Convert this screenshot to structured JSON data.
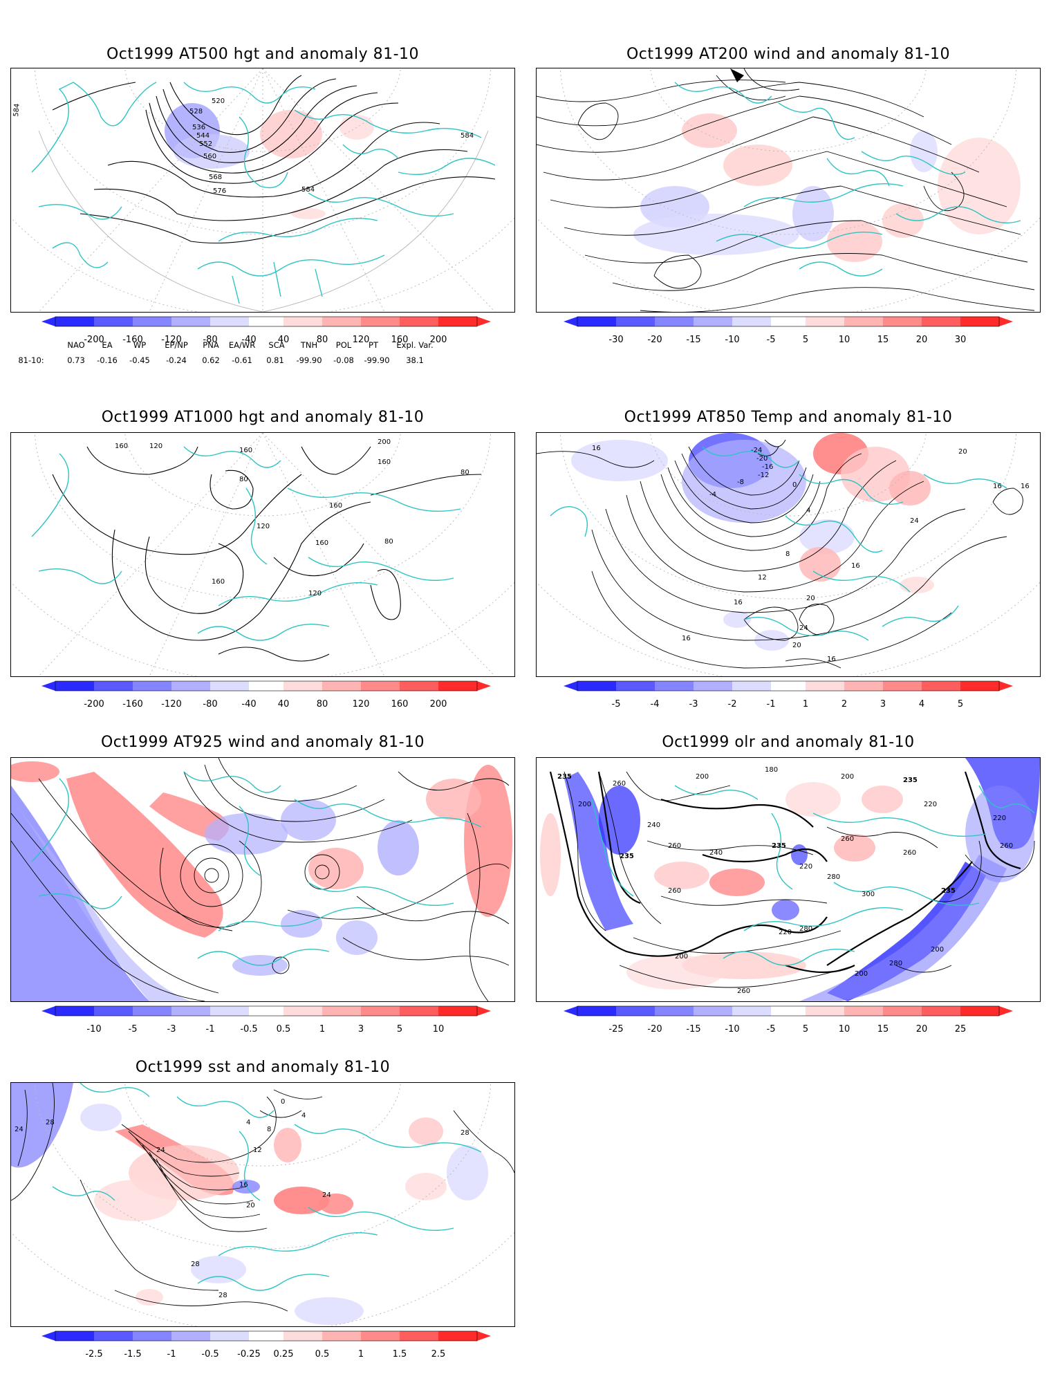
{
  "panels": [
    {
      "id": "p1",
      "title": "Oct1999 AT500 hgt and anomaly 81-10",
      "colorbar": [
        "-200",
        "-160",
        "-120",
        "-80",
        "-40",
        "40",
        "80",
        "120",
        "160",
        "200"
      ],
      "contour_labels": [
        "520",
        "528",
        "536",
        "544",
        "552",
        "560",
        "568",
        "576",
        "584",
        "584",
        "584"
      ]
    },
    {
      "id": "p2",
      "title": "Oct1999 AT200 wind and anomaly 81-10",
      "colorbar": [
        "-30",
        "-20",
        "-15",
        "-10",
        "-5",
        "5",
        "10",
        "15",
        "20",
        "30"
      ],
      "contour_labels": []
    },
    {
      "id": "p3",
      "title": "Oct1999 AT1000 hgt and anomaly 81-10",
      "colorbar": [
        "-200",
        "-160",
        "-120",
        "-80",
        "-40",
        "40",
        "80",
        "120",
        "160",
        "200"
      ],
      "contour_labels": [
        "160",
        "120",
        "160",
        "80",
        "200",
        "160",
        "80",
        "160",
        "120",
        "160",
        "80",
        "160",
        "120"
      ]
    },
    {
      "id": "p4",
      "title": "Oct1999 AT850 Temp and anomaly 81-10",
      "colorbar": [
        "-5",
        "-4",
        "-3",
        "-2",
        "-1",
        "1",
        "2",
        "3",
        "4",
        "5"
      ],
      "contour_labels": [
        "16",
        "-24",
        "-20",
        "-16",
        "-12",
        "-8",
        "-4",
        "0",
        "4",
        "20",
        "16",
        "24",
        "8",
        "16",
        "12",
        "20",
        "16",
        "24",
        "20",
        "16",
        "16",
        "16"
      ]
    },
    {
      "id": "p5",
      "title": "Oct1999 AT925 wind and anomaly 81-10",
      "colorbar": [
        "-10",
        "-5",
        "-3",
        "-1",
        "-0.5",
        "0.5",
        "1",
        "3",
        "5",
        "10"
      ],
      "contour_labels": []
    },
    {
      "id": "p6",
      "title": "Oct1999 olr and anomaly 81-10",
      "colorbar": [
        "-25",
        "-20",
        "-15",
        "-10",
        "-5",
        "5",
        "10",
        "15",
        "20",
        "25"
      ],
      "contour_labels": [
        "235",
        "260",
        "200",
        "180",
        "200",
        "235",
        "200",
        "240",
        "260",
        "240",
        "235",
        "220",
        "235",
        "260",
        "280",
        "260",
        "220",
        "300",
        "280",
        "260",
        "235",
        "220",
        "280",
        "200",
        "220",
        "260",
        "200",
        "200",
        "260"
      ]
    },
    {
      "id": "p7",
      "title": "Oct1999 sst and anomaly 81-10",
      "colorbar": [
        "-2.5",
        "-1.5",
        "-1",
        "-0.5",
        "-0.25",
        "0.25",
        "0.5",
        "1",
        "1.5",
        "2.5"
      ],
      "contour_labels": [
        "24",
        "28",
        "24",
        "0",
        "4",
        "8",
        "4",
        "12",
        "16",
        "20",
        "24",
        "28",
        "28",
        "28"
      ]
    }
  ],
  "indices": {
    "headers": [
      "NAO",
      "EA",
      "WP",
      "EP/NP",
      "PNA",
      "EA/WR",
      "SCA",
      "TNH",
      "POL",
      "PT",
      "Expl. Var."
    ],
    "row_label": "81-10:",
    "values": [
      "0.73",
      "-0.16",
      "-0.45",
      "-0.24",
      "0.62",
      "-0.61",
      "0.81",
      "-99.90",
      "-0.08",
      "-99.90",
      "38.1"
    ]
  },
  "colors": {
    "coast": "#2ec4c4",
    "contour": "#000000",
    "blue_scale": [
      "#2b2bff",
      "#5a5aff",
      "#8585ff",
      "#b0b0ff",
      "#dcdcff"
    ],
    "red_scale": [
      "#ffdcdc",
      "#ffb4b4",
      "#ff8a8a",
      "#ff5e5e",
      "#ff2a2a"
    ]
  }
}
